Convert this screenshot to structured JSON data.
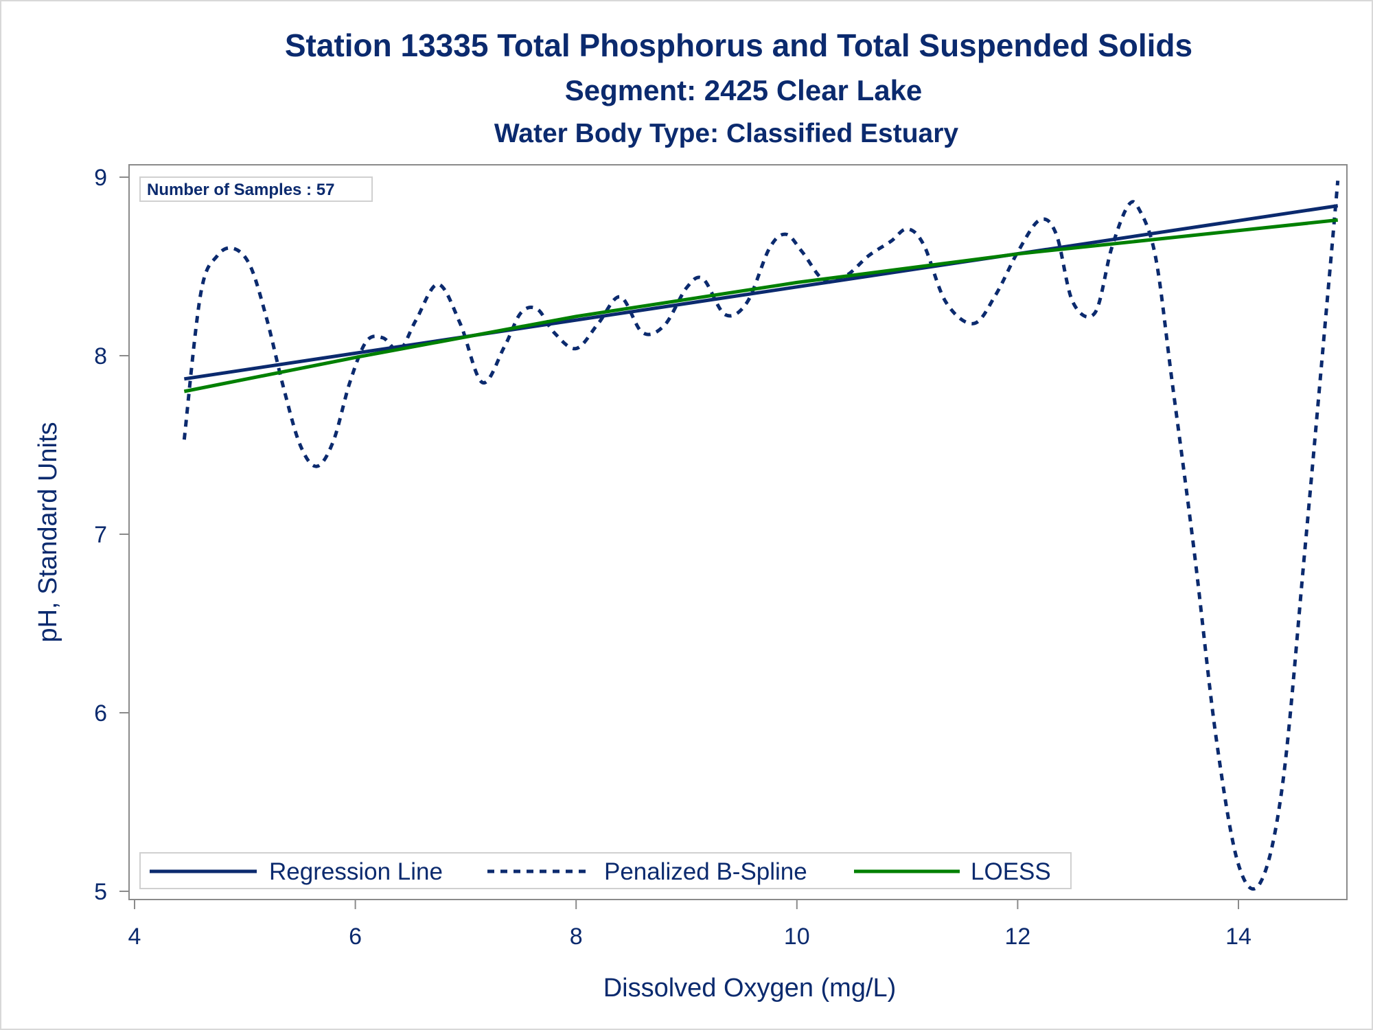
{
  "chart_data": {
    "type": "line",
    "title": "Station 13335  Total Phosphorus and Total Suspended Solids",
    "subtitle": "Segment: 2425  Clear Lake",
    "subtitle2": "Water Body Type: Classified Estuary",
    "xlabel": "Dissolved Oxygen (mg/L)",
    "ylabel": "pH, Standard Units",
    "xlim": [
      4,
      15
    ],
    "ylim": [
      5,
      9
    ],
    "x_ticks": [
      4,
      6,
      8,
      10,
      12,
      14
    ],
    "y_ticks": [
      5,
      6,
      7,
      8,
      9
    ],
    "grid": false,
    "inset_label": "Number of Samples : 57",
    "legend_position": "bottom-left-inside",
    "series": [
      {
        "name": "Regression Line",
        "style": "solid",
        "color": "#0b2a6e",
        "x": [
          4.45,
          14.9
        ],
        "y": [
          7.87,
          8.84
        ]
      },
      {
        "name": "Penalized B-Spline",
        "style": "dashed",
        "color": "#0b2a6e",
        "x": [
          4.45,
          4.6,
          4.75,
          4.9,
          5.05,
          5.2,
          5.35,
          5.5,
          5.65,
          5.8,
          5.95,
          6.1,
          6.25,
          6.4,
          6.55,
          6.75,
          6.95,
          7.15,
          7.35,
          7.5,
          7.65,
          7.8,
          8.0,
          8.2,
          8.4,
          8.6,
          8.8,
          9.0,
          9.15,
          9.35,
          9.55,
          9.75,
          9.9,
          10.05,
          10.25,
          10.45,
          10.65,
          10.85,
          11.0,
          11.15,
          11.35,
          11.6,
          11.8,
          12.0,
          12.2,
          12.35,
          12.5,
          12.7,
          12.85,
          13.0,
          13.1,
          13.25,
          13.4,
          13.6,
          13.8,
          14.0,
          14.2,
          14.4,
          14.6,
          14.8,
          14.9
        ],
        "y": [
          7.53,
          8.35,
          8.56,
          8.6,
          8.5,
          8.2,
          7.82,
          7.5,
          7.38,
          7.52,
          7.85,
          8.08,
          8.1,
          8.03,
          8.2,
          8.4,
          8.18,
          7.85,
          8.05,
          8.24,
          8.26,
          8.13,
          8.04,
          8.18,
          8.33,
          8.13,
          8.17,
          8.38,
          8.43,
          8.23,
          8.3,
          8.6,
          8.68,
          8.58,
          8.42,
          8.45,
          8.56,
          8.64,
          8.71,
          8.62,
          8.3,
          8.18,
          8.34,
          8.58,
          8.76,
          8.68,
          8.3,
          8.24,
          8.6,
          8.84,
          8.82,
          8.55,
          7.85,
          6.9,
          5.85,
          5.15,
          5.05,
          5.6,
          6.9,
          8.28,
          8.98
        ]
      },
      {
        "name": "LOESS",
        "style": "solid",
        "color": "#008000",
        "x": [
          4.45,
          6,
          8,
          10,
          12,
          14.9
        ],
        "y": [
          7.8,
          7.99,
          8.22,
          8.41,
          8.57,
          8.76
        ]
      }
    ]
  },
  "colors": {
    "text": "#0b2a6e",
    "axis": "#8a8a8a",
    "regression": "#0b2a6e",
    "spline": "#0b2a6e",
    "loess": "#008000"
  }
}
